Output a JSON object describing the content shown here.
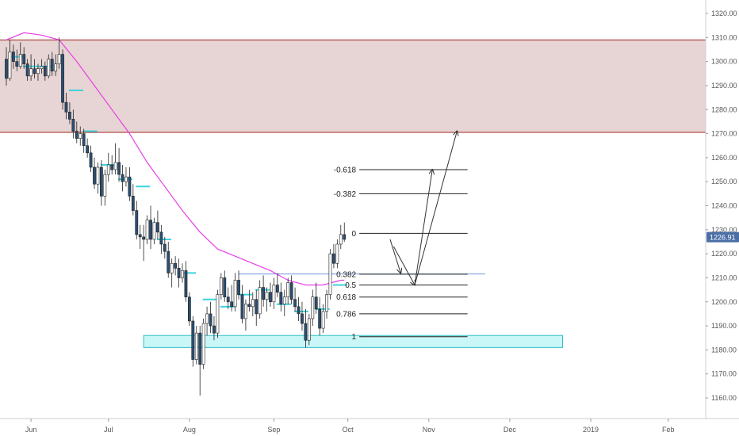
{
  "chart_data": {
    "type": "candlestick",
    "y_axis": {
      "ylim": [
        1155,
        1322
      ],
      "ticks": [
        1160,
        1170,
        1180,
        1190,
        1200,
        1210,
        1220,
        1230,
        1240,
        1250,
        1260,
        1270,
        1280,
        1290,
        1300,
        1310,
        1320
      ],
      "tick_labels": [
        "1160.00",
        "1170.00",
        "1180.00",
        "1190.00",
        "1200.00",
        "1210.00",
        "1220.00",
        "1230.00",
        "1240.00",
        "1250.00",
        "1260.00",
        "1270.00",
        "1280.00",
        "1290.00",
        "1300.00",
        "1310.00",
        "1320.00"
      ]
    },
    "x_axis": {
      "tick_labels": [
        "Jun",
        "Jul",
        "Aug",
        "Sep",
        "Oct",
        "Nov",
        "Dec",
        "2019",
        "Feb"
      ],
      "tick_bars": [
        7,
        29,
        52,
        76,
        97,
        120,
        143,
        166,
        188
      ],
      "bar_range": [
        0,
        197
      ]
    },
    "last_price": {
      "label": "1226.91",
      "value": 1226.91
    },
    "colors": {
      "candle_up": "#ffffff",
      "candle_down": "#2a4e73",
      "candle_outline": "#222222",
      "moving_average": "#e83ee8",
      "resistance_zone": "#e7d4d4",
      "resistance_border": "#a0231f",
      "support_zone": "#c9f6f7",
      "support_border": "#2bbfc5",
      "pivot_marks": "#3fd3dc",
      "fib_lines": "#222222",
      "blue_line": "#6f98d8",
      "price_tag": "#4a6fa5"
    },
    "resistance_zone": {
      "low": 1270.5,
      "high": 1309.0
    },
    "support_zone": {
      "low": 1181.0,
      "high": 1186.0,
      "bar_start": 39,
      "bar_end": 158
    },
    "horizontal_line": {
      "value": 1211.6,
      "bar_start": 66,
      "bar_end": 136
    },
    "fib_levels": [
      {
        "label": "-0.618",
        "value": 1255.0
      },
      {
        "label": "-0.382",
        "value": 1245.0
      },
      {
        "label": "0",
        "value": 1228.5
      },
      {
        "label": "0.382",
        "value": 1211.5
      },
      {
        "label": "0.5",
        "value": 1207.0
      },
      {
        "label": "0.618",
        "value": 1202.0
      },
      {
        "label": "0.786",
        "value": 1195.0
      },
      {
        "label": "1",
        "value": 1185.5
      }
    ],
    "fib_line_bars": [
      98,
      131
    ],
    "projection_arrows": [
      {
        "from": [
          109,
          1226
        ],
        "to": [
          112,
          1212
        ]
      },
      {
        "from": [
          110,
          1223
        ],
        "to": [
          116,
          1207
        ]
      },
      {
        "from": [
          116,
          1207
        ],
        "to": [
          121,
          1255
        ]
      },
      {
        "from": [
          116,
          1207
        ],
        "to": [
          128,
          1271
        ]
      }
    ],
    "candles": [
      [
        0,
        1301,
        1306,
        1290,
        1293
      ],
      [
        1,
        1293,
        1309,
        1292,
        1304
      ],
      [
        2,
        1304,
        1307,
        1297,
        1300
      ],
      [
        3,
        1300,
        1305,
        1296,
        1298
      ],
      [
        4,
        1298,
        1308,
        1297,
        1303
      ],
      [
        5,
        1303,
        1306,
        1297,
        1299
      ],
      [
        6,
        1299,
        1301,
        1292,
        1294
      ],
      [
        7,
        1294,
        1303,
        1292,
        1297
      ],
      [
        8,
        1297,
        1301,
        1293,
        1295
      ],
      [
        9,
        1295,
        1299,
        1292,
        1297
      ],
      [
        10,
        1297,
        1301,
        1295,
        1298
      ],
      [
        11,
        1298,
        1300,
        1292,
        1294
      ],
      [
        12,
        1294,
        1303,
        1293,
        1301
      ],
      [
        13,
        1301,
        1304,
        1294,
        1296
      ],
      [
        14,
        1296,
        1303,
        1294,
        1299
      ],
      [
        15,
        1299,
        1310,
        1297,
        1303
      ],
      [
        16,
        1303,
        1305,
        1280,
        1283
      ],
      [
        17,
        1283,
        1287,
        1276,
        1279
      ],
      [
        18,
        1279,
        1283,
        1274,
        1276
      ],
      [
        19,
        1276,
        1280,
        1268,
        1271
      ],
      [
        20,
        1271,
        1275,
        1266,
        1268
      ],
      [
        21,
        1268,
        1273,
        1265,
        1270
      ],
      [
        22,
        1270,
        1272,
        1262,
        1265
      ],
      [
        23,
        1265,
        1268,
        1260,
        1262
      ],
      [
        24,
        1262,
        1265,
        1254,
        1256
      ],
      [
        25,
        1256,
        1260,
        1247,
        1249
      ],
      [
        26,
        1249,
        1258,
        1245,
        1256
      ],
      [
        27,
        1256,
        1259,
        1240,
        1244
      ],
      [
        28,
        1244,
        1255,
        1240,
        1253
      ],
      [
        29,
        1253,
        1262,
        1250,
        1257
      ],
      [
        30,
        1257,
        1261,
        1253,
        1255
      ],
      [
        31,
        1255,
        1266,
        1253,
        1258
      ],
      [
        32,
        1258,
        1264,
        1250,
        1253
      ],
      [
        33,
        1253,
        1257,
        1246,
        1250
      ],
      [
        34,
        1250,
        1256,
        1248,
        1252
      ],
      [
        35,
        1252,
        1256,
        1242,
        1244
      ],
      [
        36,
        1244,
        1249,
        1236,
        1238
      ],
      [
        37,
        1238,
        1242,
        1226,
        1228
      ],
      [
        38,
        1228,
        1232,
        1222,
        1227
      ],
      [
        39,
        1227,
        1232,
        1217,
        1226
      ],
      [
        40,
        1226,
        1236,
        1224,
        1234
      ],
      [
        41,
        1234,
        1240,
        1222,
        1226
      ],
      [
        42,
        1226,
        1235,
        1224,
        1233
      ],
      [
        43,
        1233,
        1238,
        1226,
        1229
      ],
      [
        44,
        1229,
        1232,
        1220,
        1224
      ],
      [
        45,
        1224,
        1227,
        1218,
        1221
      ],
      [
        46,
        1221,
        1225,
        1210,
        1212
      ],
      [
        47,
        1212,
        1218,
        1206,
        1216
      ],
      [
        48,
        1216,
        1219,
        1211,
        1214
      ],
      [
        49,
        1214,
        1218,
        1206,
        1210
      ],
      [
        50,
        1210,
        1216,
        1208,
        1213
      ],
      [
        51,
        1213,
        1217,
        1200,
        1202
      ],
      [
        52,
        1202,
        1204,
        1190,
        1192
      ],
      [
        53,
        1192,
        1194,
        1173,
        1176
      ],
      [
        54,
        1176,
        1190,
        1174,
        1187
      ],
      [
        55,
        1187,
        1190,
        1161,
        1174
      ],
      [
        56,
        1174,
        1193,
        1172,
        1191
      ],
      [
        57,
        1191,
        1198,
        1186,
        1195
      ],
      [
        58,
        1195,
        1200,
        1187,
        1190
      ],
      [
        59,
        1190,
        1194,
        1184,
        1187
      ],
      [
        60,
        1187,
        1205,
        1185,
        1203
      ],
      [
        61,
        1203,
        1212,
        1201,
        1210
      ],
      [
        62,
        1210,
        1213,
        1200,
        1202
      ],
      [
        63,
        1202,
        1206,
        1197,
        1200
      ],
      [
        64,
        1200,
        1207,
        1196,
        1198
      ],
      [
        65,
        1198,
        1212,
        1196,
        1209
      ],
      [
        66,
        1209,
        1213,
        1201,
        1203
      ],
      [
        67,
        1203,
        1207,
        1191,
        1193
      ],
      [
        68,
        1193,
        1201,
        1188,
        1199
      ],
      [
        69,
        1199,
        1205,
        1196,
        1198
      ],
      [
        70,
        1198,
        1204,
        1194,
        1201
      ],
      [
        71,
        1201,
        1205,
        1190,
        1195
      ],
      [
        72,
        1195,
        1209,
        1193,
        1206
      ],
      [
        73,
        1206,
        1211,
        1198,
        1201
      ],
      [
        74,
        1201,
        1206,
        1196,
        1204
      ],
      [
        75,
        1204,
        1208,
        1198,
        1200
      ],
      [
        76,
        1200,
        1210,
        1197,
        1207
      ],
      [
        77,
        1207,
        1212,
        1202,
        1204
      ],
      [
        78,
        1204,
        1208,
        1196,
        1199
      ],
      [
        79,
        1199,
        1205,
        1194,
        1202
      ],
      [
        80,
        1202,
        1210,
        1199,
        1208
      ],
      [
        81,
        1208,
        1211,
        1199,
        1201
      ],
      [
        82,
        1201,
        1206,
        1196,
        1198
      ],
      [
        83,
        1198,
        1202,
        1192,
        1195
      ],
      [
        84,
        1195,
        1200,
        1188,
        1191
      ],
      [
        85,
        1191,
        1197,
        1181,
        1184
      ],
      [
        86,
        1184,
        1195,
        1182,
        1193
      ],
      [
        87,
        1193,
        1205,
        1190,
        1202
      ],
      [
        88,
        1202,
        1208,
        1195,
        1197
      ],
      [
        89,
        1197,
        1202,
        1186,
        1189
      ],
      [
        90,
        1189,
        1199,
        1187,
        1196
      ],
      [
        91,
        1196,
        1205,
        1193,
        1203
      ],
      [
        92,
        1203,
        1222,
        1201,
        1220
      ],
      [
        93,
        1220,
        1224,
        1214,
        1216
      ],
      [
        94,
        1216,
        1226,
        1214,
        1224
      ],
      [
        95,
        1224,
        1232,
        1222,
        1228
      ],
      [
        96,
        1228,
        1233,
        1225,
        1226
      ]
    ],
    "moving_average": [
      [
        0,
        1309
      ],
      [
        5,
        1312
      ],
      [
        10,
        1311
      ],
      [
        15,
        1309
      ],
      [
        20,
        1300
      ],
      [
        25,
        1290
      ],
      [
        30,
        1280
      ],
      [
        35,
        1270
      ],
      [
        40,
        1258
      ],
      [
        45,
        1248
      ],
      [
        50,
        1238
      ],
      [
        55,
        1229
      ],
      [
        60,
        1222
      ],
      [
        65,
        1219
      ],
      [
        70,
        1216
      ],
      [
        75,
        1213
      ],
      [
        80,
        1209
      ],
      [
        85,
        1207
      ],
      [
        90,
        1207
      ],
      [
        95,
        1209
      ],
      [
        96,
        1209
      ]
    ],
    "pivot_marks": [
      [
        1,
        1302
      ],
      [
        5,
        1298
      ],
      [
        9,
        1298
      ],
      [
        18,
        1288
      ],
      [
        22,
        1271
      ],
      [
        27,
        1257
      ],
      [
        32,
        1251
      ],
      [
        37,
        1248
      ],
      [
        43,
        1226
      ],
      [
        50,
        1212
      ],
      [
        56,
        1201
      ],
      [
        61,
        1198
      ],
      [
        66,
        1203
      ],
      [
        71,
        1205
      ],
      [
        77,
        1199
      ],
      [
        82,
        1196
      ],
      [
        88,
        1197
      ],
      [
        93,
        1207
      ]
    ]
  }
}
